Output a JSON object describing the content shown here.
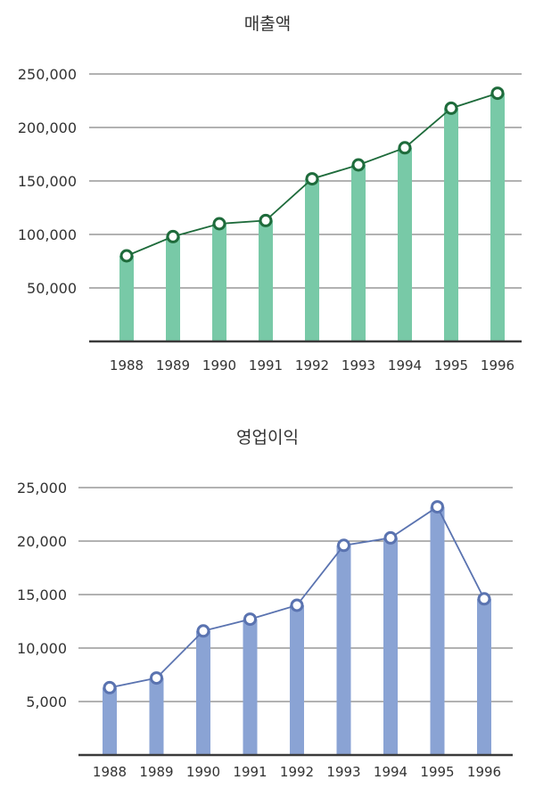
{
  "chart_data": [
    {
      "type": "bar",
      "title": "매출액",
      "categories": [
        "1988",
        "1989",
        "1990",
        "1991",
        "1992",
        "1993",
        "1994",
        "1995",
        "1996"
      ],
      "series": [
        {
          "values": [
            80000,
            98000,
            110000,
            113000,
            152000,
            165000,
            181000,
            218000,
            232000
          ]
        }
      ],
      "yticks": [
        "50,000",
        "100,000",
        "150,000",
        "200,000",
        "250,000"
      ],
      "ytick_values": [
        50000,
        100000,
        150000,
        200000,
        250000
      ],
      "ylim": [
        0,
        250000
      ],
      "overlay": "line",
      "grid": true,
      "colors": {
        "bar": "#78c9a7",
        "line": "#1e6b3b",
        "marker_fill": "#ffffff",
        "marker_stroke": "#1e6b3b"
      }
    },
    {
      "type": "bar",
      "title": "영업이익",
      "categories": [
        "1988",
        "1989",
        "1990",
        "1991",
        "1992",
        "1993",
        "1994",
        "1995",
        "1996"
      ],
      "series": [
        {
          "values": [
            6300,
            7200,
            11600,
            12700,
            14000,
            19600,
            20300,
            23200,
            14600
          ]
        }
      ],
      "yticks": [
        "5,000",
        "10,000",
        "15,000",
        "20,000",
        "25,000"
      ],
      "ytick_values": [
        5000,
        10000,
        15000,
        20000,
        25000
      ],
      "ylim": [
        0,
        25000
      ],
      "overlay": "line",
      "grid": true,
      "colors": {
        "bar": "#8aa3d4",
        "line": "#5a73b0",
        "marker_fill": "#ffffff",
        "marker_stroke": "#5a73b0"
      }
    }
  ]
}
